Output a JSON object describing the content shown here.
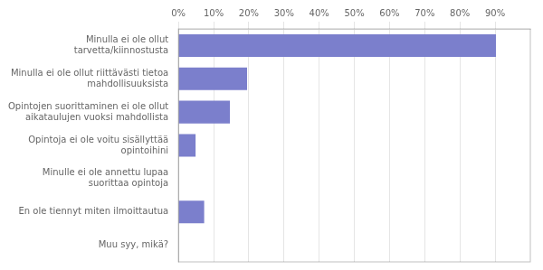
{
  "chart_data": {
    "type": "bar",
    "orientation": "horizontal",
    "categories": [
      "Muu syy, mikä?",
      "En ole tiennyt miten ilmoittautua",
      "Minulle ei ole annettu lupaa\nsuorittaa opintoja",
      "Opintoja ei ole voitu sisällyttää\nopintoihini",
      "Opintojen suorittaminen ei ole ollut\naikataulujen vuoksi mahdollista",
      "Minulla ei ole ollut riittävästi tietoa\nmahdollisuuksista",
      "Minulla ei ole ollut\ntarvetta/kiinnostusta"
    ],
    "values": [
      0.0,
      7.32,
      0.0,
      4.88,
      14.63,
      19.51,
      90.24
    ],
    "color": "#7b7fcc",
    "xlim": [
      0,
      100
    ],
    "xticks": [
      {
        "value": 0,
        "label": "0%"
      },
      {
        "value": 10,
        "label": "10%"
      },
      {
        "value": 20,
        "label": "20%"
      },
      {
        "value": 30,
        "label": "30%"
      },
      {
        "value": 40,
        "label": "40%"
      },
      {
        "value": 50,
        "label": "50%"
      },
      {
        "value": 60,
        "label": "60%"
      },
      {
        "value": 70,
        "label": "70%"
      },
      {
        "value": 80,
        "label": "80%"
      },
      {
        "value": 90,
        "label": "90%"
      }
    ],
    "grid": true
  }
}
